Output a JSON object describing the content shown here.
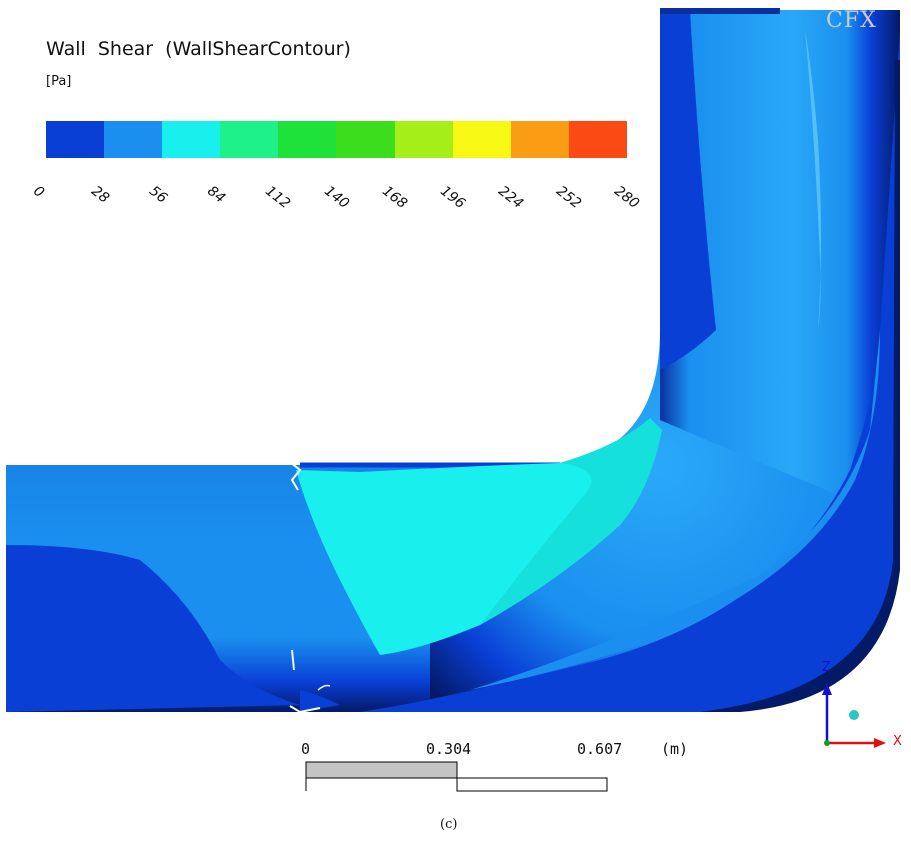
{
  "legend": {
    "title": "Wall  Shear  (WallShearContour)",
    "unit": "[Pa]",
    "colors": [
      "#0a3fd6",
      "#1a8fef",
      "#19f0ee",
      "#1ef08a",
      "#1ee23a",
      "#3cdd1c",
      "#a6ee1a",
      "#f8f815",
      "#fa9c14",
      "#fb4a13"
    ],
    "ticks": [
      "0",
      "28",
      "56",
      "84",
      "112",
      "140",
      "168",
      "196",
      "224",
      "252",
      "280"
    ]
  },
  "watermark": "CFX",
  "scale_bar": {
    "labels": [
      "0",
      "0.304",
      "0.607"
    ],
    "unit": "(m)"
  },
  "axes": {
    "z_label": "Z",
    "x_label": "X"
  },
  "caption": "(c)",
  "surface_colors": {
    "dark_blue": "#0a3fd6",
    "mid_blue": "#1a8fef",
    "cyan": "#19f0ee",
    "shadow": "#001a5c"
  }
}
